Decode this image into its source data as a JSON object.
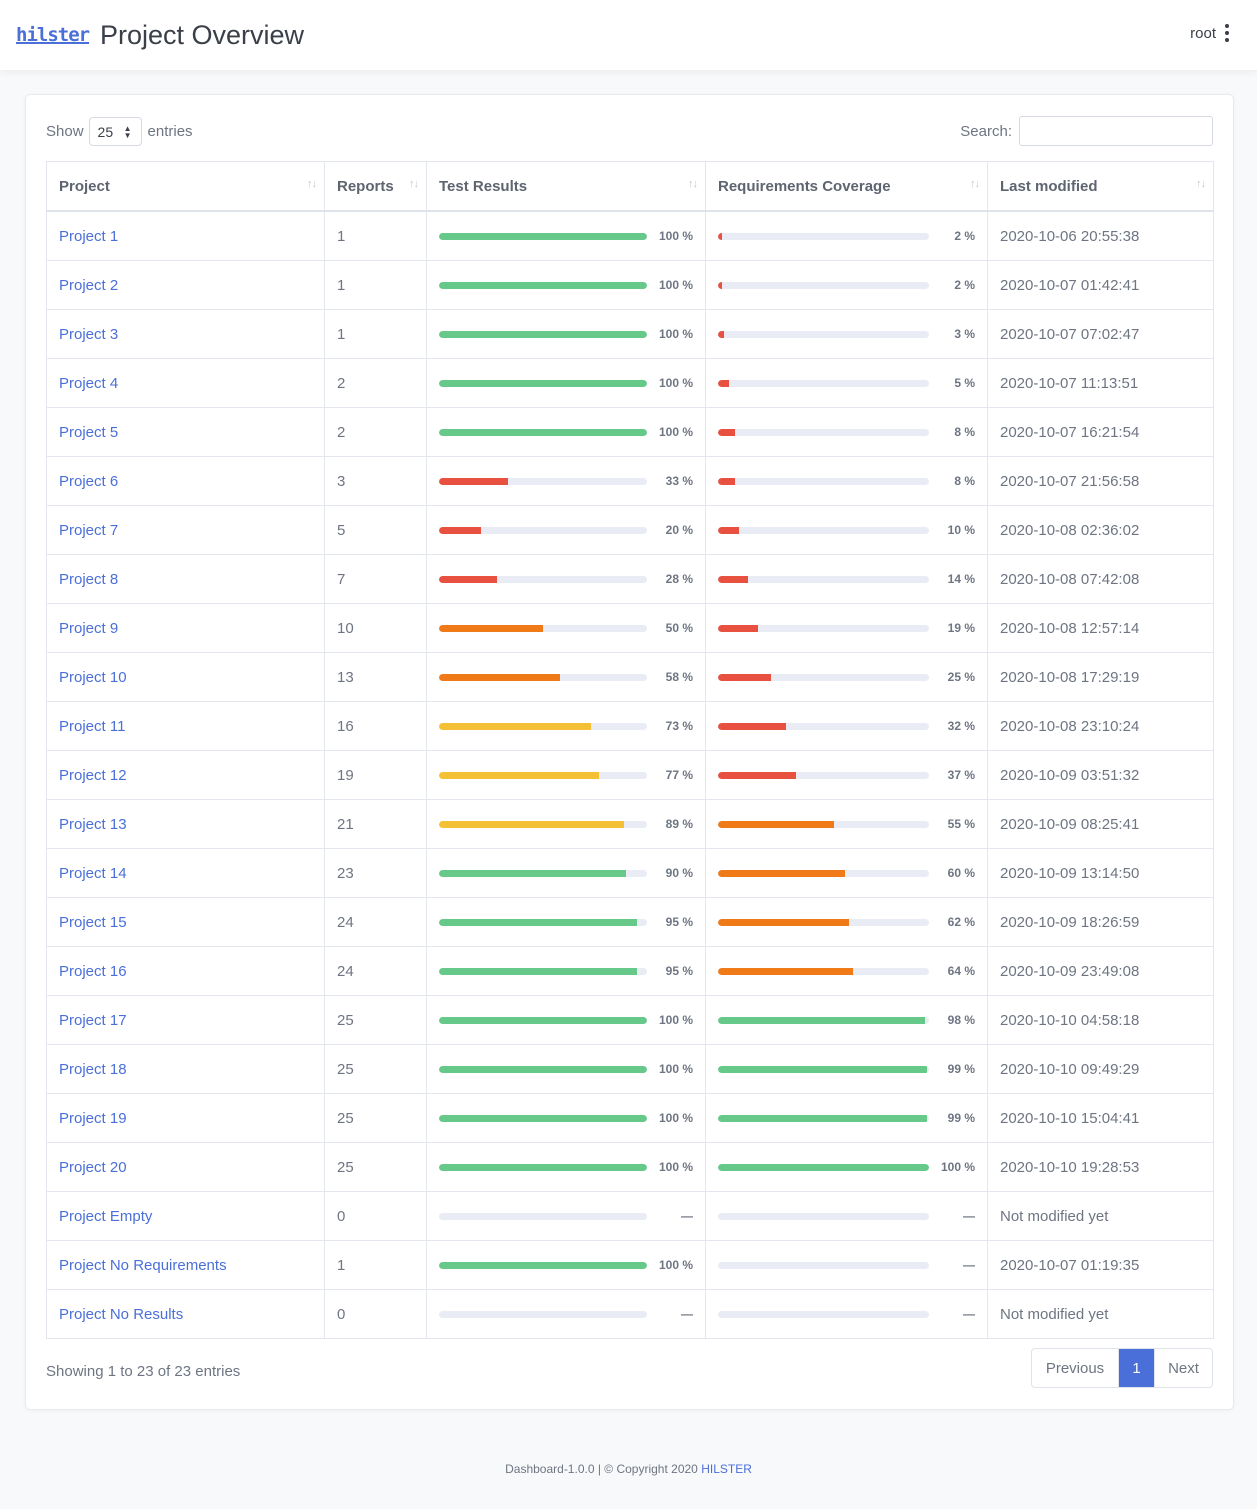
{
  "header": {
    "logo_text": "hilster",
    "title": "Project Overview",
    "user": "root"
  },
  "controls": {
    "show_label": "Show",
    "page_size": "25",
    "entries_label": "entries",
    "search_label": "Search:"
  },
  "columns": [
    "Project",
    "Reports",
    "Test Results",
    "Requirements Coverage",
    "Last modified"
  ],
  "colors": {
    "green": "#66c98a",
    "red": "#e8503f",
    "orange": "#f07a18",
    "yellow": "#f4c136",
    "link": "#4a6fd8"
  },
  "rows": [
    {
      "name": "Project 1",
      "reports": "1",
      "test": 100,
      "test_label": "100 %",
      "test_color": "green",
      "req": 2,
      "req_label": "2 %",
      "req_color": "red",
      "modified": "2020-10-06 20:55:38"
    },
    {
      "name": "Project 2",
      "reports": "1",
      "test": 100,
      "test_label": "100 %",
      "test_color": "green",
      "req": 2,
      "req_label": "2 %",
      "req_color": "red",
      "modified": "2020-10-07 01:42:41"
    },
    {
      "name": "Project 3",
      "reports": "1",
      "test": 100,
      "test_label": "100 %",
      "test_color": "green",
      "req": 3,
      "req_label": "3 %",
      "req_color": "red",
      "modified": "2020-10-07 07:02:47"
    },
    {
      "name": "Project 4",
      "reports": "2",
      "test": 100,
      "test_label": "100 %",
      "test_color": "green",
      "req": 5,
      "req_label": "5 %",
      "req_color": "red",
      "modified": "2020-10-07 11:13:51"
    },
    {
      "name": "Project 5",
      "reports": "2",
      "test": 100,
      "test_label": "100 %",
      "test_color": "green",
      "req": 8,
      "req_label": "8 %",
      "req_color": "red",
      "modified": "2020-10-07 16:21:54"
    },
    {
      "name": "Project 6",
      "reports": "3",
      "test": 33,
      "test_label": "33 %",
      "test_color": "red",
      "req": 8,
      "req_label": "8 %",
      "req_color": "red",
      "modified": "2020-10-07 21:56:58"
    },
    {
      "name": "Project 7",
      "reports": "5",
      "test": 20,
      "test_label": "20 %",
      "test_color": "red",
      "req": 10,
      "req_label": "10 %",
      "req_color": "red",
      "modified": "2020-10-08 02:36:02"
    },
    {
      "name": "Project 8",
      "reports": "7",
      "test": 28,
      "test_label": "28 %",
      "test_color": "red",
      "req": 14,
      "req_label": "14 %",
      "req_color": "red",
      "modified": "2020-10-08 07:42:08"
    },
    {
      "name": "Project 9",
      "reports": "10",
      "test": 50,
      "test_label": "50 %",
      "test_color": "orange",
      "req": 19,
      "req_label": "19 %",
      "req_color": "red",
      "modified": "2020-10-08 12:57:14"
    },
    {
      "name": "Project 10",
      "reports": "13",
      "test": 58,
      "test_label": "58 %",
      "test_color": "orange",
      "req": 25,
      "req_label": "25 %",
      "req_color": "red",
      "modified": "2020-10-08 17:29:19"
    },
    {
      "name": "Project 11",
      "reports": "16",
      "test": 73,
      "test_label": "73 %",
      "test_color": "yellow",
      "req": 32,
      "req_label": "32 %",
      "req_color": "red",
      "modified": "2020-10-08 23:10:24"
    },
    {
      "name": "Project 12",
      "reports": "19",
      "test": 77,
      "test_label": "77 %",
      "test_color": "yellow",
      "req": 37,
      "req_label": "37 %",
      "req_color": "red",
      "modified": "2020-10-09 03:51:32"
    },
    {
      "name": "Project 13",
      "reports": "21",
      "test": 89,
      "test_label": "89 %",
      "test_color": "yellow",
      "req": 55,
      "req_label": "55 %",
      "req_color": "orange",
      "modified": "2020-10-09 08:25:41"
    },
    {
      "name": "Project 14",
      "reports": "23",
      "test": 90,
      "test_label": "90 %",
      "test_color": "green",
      "req": 60,
      "req_label": "60 %",
      "req_color": "orange",
      "modified": "2020-10-09 13:14:50"
    },
    {
      "name": "Project 15",
      "reports": "24",
      "test": 95,
      "test_label": "95 %",
      "test_color": "green",
      "req": 62,
      "req_label": "62 %",
      "req_color": "orange",
      "modified": "2020-10-09 18:26:59"
    },
    {
      "name": "Project 16",
      "reports": "24",
      "test": 95,
      "test_label": "95 %",
      "test_color": "green",
      "req": 64,
      "req_label": "64 %",
      "req_color": "orange",
      "modified": "2020-10-09 23:49:08"
    },
    {
      "name": "Project 17",
      "reports": "25",
      "test": 100,
      "test_label": "100 %",
      "test_color": "green",
      "req": 98,
      "req_label": "98 %",
      "req_color": "green",
      "modified": "2020-10-10 04:58:18"
    },
    {
      "name": "Project 18",
      "reports": "25",
      "test": 100,
      "test_label": "100 %",
      "test_color": "green",
      "req": 99,
      "req_label": "99 %",
      "req_color": "green",
      "modified": "2020-10-10 09:49:29"
    },
    {
      "name": "Project 19",
      "reports": "25",
      "test": 100,
      "test_label": "100 %",
      "test_color": "green",
      "req": 99,
      "req_label": "99 %",
      "req_color": "green",
      "modified": "2020-10-10 15:04:41"
    },
    {
      "name": "Project 20",
      "reports": "25",
      "test": 100,
      "test_label": "100 %",
      "test_color": "green",
      "req": 100,
      "req_label": "100 %",
      "req_color": "green",
      "modified": "2020-10-10 19:28:53"
    },
    {
      "name": "Project Empty",
      "reports": "0",
      "test": 0,
      "test_label": "—",
      "test_color": "green",
      "req": 0,
      "req_label": "—",
      "req_color": "green",
      "modified": "Not modified yet"
    },
    {
      "name": "Project No Requirements",
      "reports": "1",
      "test": 100,
      "test_label": "100 %",
      "test_color": "green",
      "req": 0,
      "req_label": "—",
      "req_color": "green",
      "modified": "2020-10-07 01:19:35"
    },
    {
      "name": "Project No Results",
      "reports": "0",
      "test": 0,
      "test_label": "—",
      "test_color": "green",
      "req": 0,
      "req_label": "—",
      "req_color": "green",
      "modified": "Not modified yet"
    }
  ],
  "info": "Showing 1 to 23 of 23 entries",
  "pagination": {
    "previous": "Previous",
    "current": "1",
    "next": "Next"
  },
  "footer": {
    "text": "Dashboard-1.0.0 | © Copyright 2020 ",
    "brand": "HILSTER"
  }
}
